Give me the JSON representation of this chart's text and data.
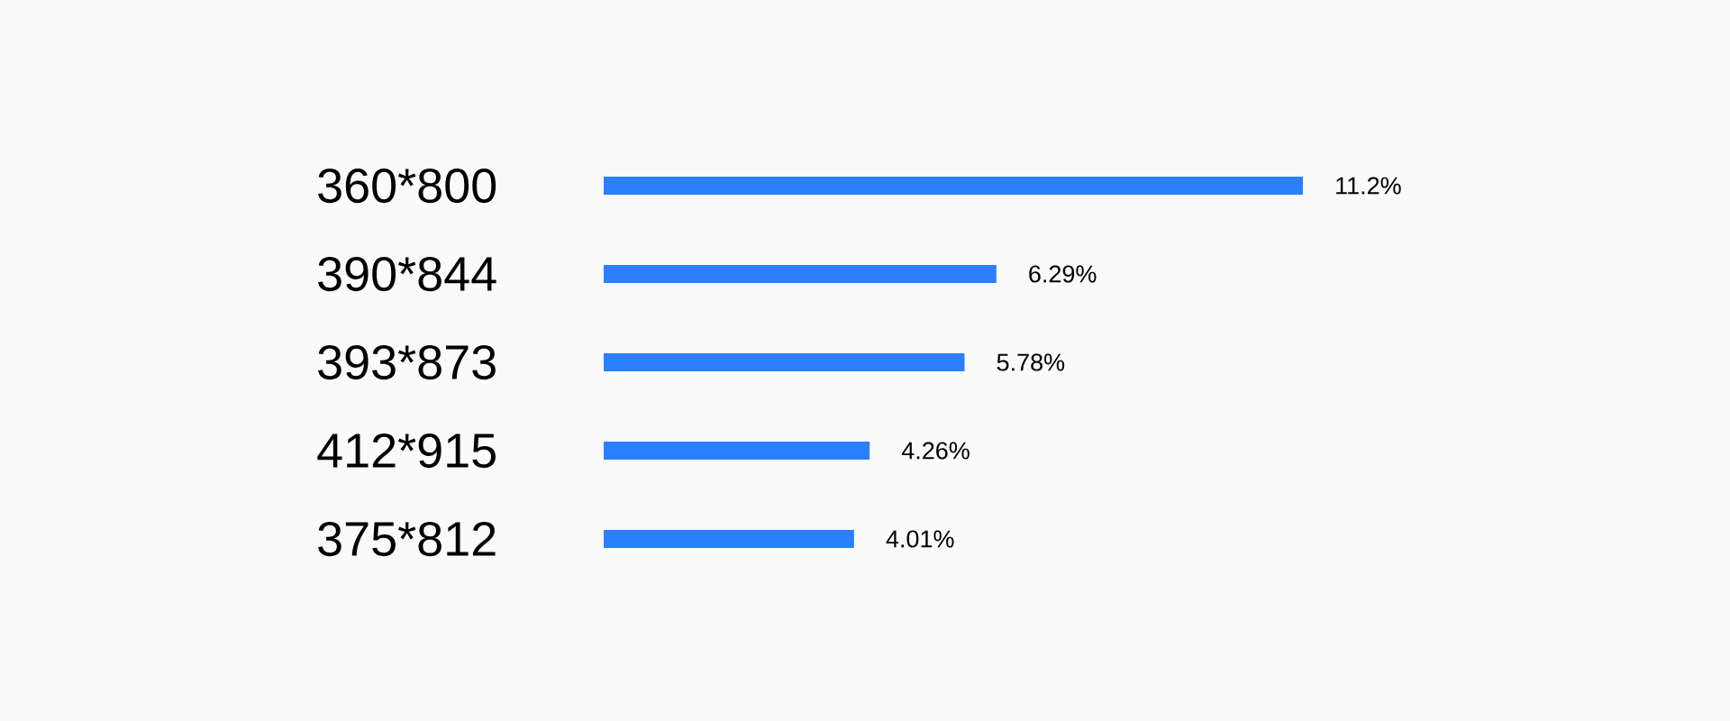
{
  "chart_data": {
    "type": "bar",
    "orientation": "horizontal",
    "categories": [
      "360*800",
      "390*844",
      "393*873",
      "412*915",
      "375*812"
    ],
    "values": [
      11.2,
      6.29,
      5.78,
      4.26,
      4.01
    ],
    "value_labels": [
      "11.2%",
      "6.29%",
      "5.78%",
      "4.26%",
      "4.01%"
    ],
    "color": "#2b7fff"
  }
}
